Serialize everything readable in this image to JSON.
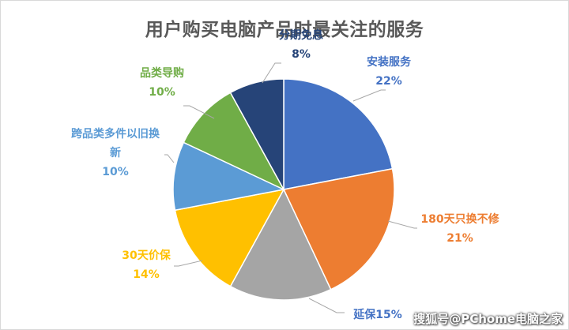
{
  "chart_data": {
    "type": "pie",
    "title": "用户购买电脑产品时最关注的服务",
    "slices": [
      {
        "name": "安装服务",
        "value": 22,
        "label_lines": [
          "安装服务",
          "22%"
        ],
        "color": "#4472C4",
        "label_color": "#4472C4"
      },
      {
        "name": "180天只换不修",
        "value": 21,
        "label_lines": [
          "180天只换不修",
          "21%"
        ],
        "color": "#ED7D31",
        "label_color": "#ED7D31"
      },
      {
        "name": "延保",
        "value": 15,
        "label_lines": [
          "延保15%"
        ],
        "color": "#A5A5A5",
        "label_color": "#4472C4"
      },
      {
        "name": "30天价保",
        "value": 14,
        "label_lines": [
          "30天价保",
          "14%"
        ],
        "color": "#FFC000",
        "label_color": "#FFC000"
      },
      {
        "name": "跨品类多件以旧换新",
        "value": 10,
        "label_lines": [
          "跨品类多件以旧换",
          "新",
          "10%"
        ],
        "color": "#5B9BD5",
        "label_color": "#5B9BD5"
      },
      {
        "name": "品类导购",
        "value": 10,
        "label_lines": [
          "品类导购",
          "10%"
        ],
        "color": "#70AD47",
        "label_color": "#70AD47"
      },
      {
        "name": "分期免息",
        "value": 8,
        "label_lines": [
          "分期免息",
          "8%"
        ],
        "color": "#264478",
        "label_color": "#264478"
      }
    ]
  },
  "watermark": "搜狐号@PChome电脑之家"
}
